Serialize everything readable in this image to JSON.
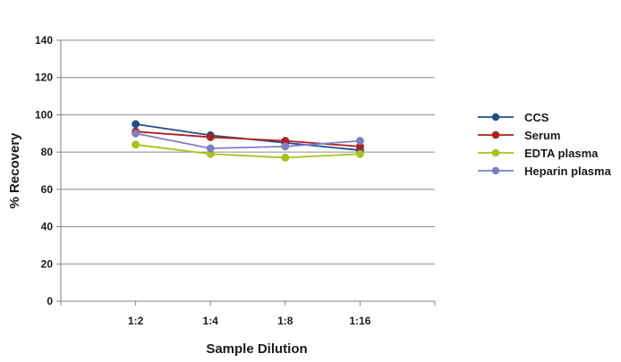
{
  "chart_data": {
    "type": "line",
    "title": "",
    "xlabel": "Sample Dilution",
    "ylabel": "% Recovery",
    "categories": [
      "1:2",
      "1:4",
      "1:8",
      "1:16"
    ],
    "ylim": [
      0,
      140
    ],
    "yticks": [
      0,
      20,
      40,
      60,
      80,
      100,
      120,
      140
    ],
    "grid": true,
    "legend_position": "right",
    "series": [
      {
        "name": "CCS",
        "color": "#1f4e8c",
        "values": [
          95,
          89,
          85,
          81
        ]
      },
      {
        "name": "Serum",
        "color": "#b01e1e",
        "values": [
          91,
          88,
          86,
          83
        ]
      },
      {
        "name": "EDTA plasma",
        "color": "#a8c21a",
        "values": [
          84,
          79,
          77,
          79
        ]
      },
      {
        "name": "Heparin plasma",
        "color": "#7f7fc4",
        "values": [
          90,
          82,
          83,
          86
        ]
      }
    ]
  }
}
